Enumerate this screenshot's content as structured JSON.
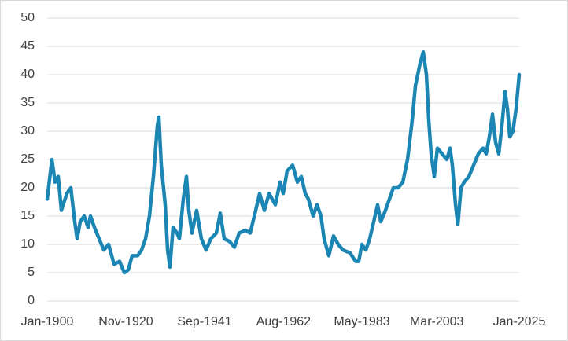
{
  "chart_data": {
    "type": "line",
    "x": [
      1900,
      1901.25,
      1902.08,
      1902.92,
      1903.75,
      1905.21,
      1906.25,
      1907.29,
      1907.92,
      1908.75,
      1909.79,
      1910.83,
      1911.46,
      1912.5,
      1913.75,
      1915,
      1916.25,
      1917.71,
      1919.17,
      1920.42,
      1921.46,
      1922.5,
      1923.96,
      1925,
      1926.04,
      1927.08,
      1928.13,
      1929.17,
      1929.58,
      1930.21,
      1931.25,
      1931.88,
      1932.5,
      1933.33,
      1934.38,
      1935,
      1936.04,
      1936.88,
      1937.5,
      1938.33,
      1939.58,
      1940.83,
      1942.08,
      1943.33,
      1944.79,
      1945.83,
      1946.88,
      1948.33,
      1949.58,
      1950.83,
      1952.5,
      1953.75,
      1955.21,
      1956.25,
      1957.5,
      1958.75,
      1960.42,
      1961.67,
      1962.5,
      1963.54,
      1965,
      1966.25,
      1967.29,
      1968.33,
      1969.17,
      1970.42,
      1971.46,
      1972.5,
      1973.33,
      1974.58,
      1975.83,
      1977.08,
      1978.33,
      1980.21,
      1981.67,
      1982.5,
      1983.33,
      1984.38,
      1985.42,
      1986.46,
      1987.5,
      1988.33,
      1989.58,
      1990.63,
      1991.67,
      1992.92,
      1994.17,
      1995.42,
      1996.67,
      1997.5,
      1998.75,
      1999.58,
      2000.42,
      2001.04,
      2001.67,
      2002.5,
      2003.33,
      2004.58,
      2005.83,
      2006.67,
      2007.29,
      2008.13,
      2008.75,
      2009.58,
      2010.42,
      2011.67,
      2012.92,
      2014.17,
      2015.42,
      2016.25,
      2017.08,
      2017.92,
      2018.75,
      2019.58,
      2020.42,
      2021.25,
      2021.88,
      2022.5,
      2023.33,
      2024.17,
      2025
    ],
    "series": [
      {
        "color": "#1b86b3",
        "values": [
          18,
          25,
          21,
          22,
          16,
          19,
          20,
          14,
          11,
          14,
          15,
          13,
          15,
          13,
          11,
          9,
          10,
          6.5,
          7,
          5,
          5.5,
          8,
          8,
          9,
          11,
          15,
          22,
          31,
          32.5,
          24,
          17,
          9,
          6,
          13,
          12,
          11,
          18,
          22,
          16,
          12,
          16,
          11,
          9,
          11,
          12,
          15.5,
          11,
          10.5,
          9.5,
          12,
          12.5,
          12,
          16,
          19,
          16,
          19,
          17,
          21,
          19,
          23,
          24,
          21,
          22,
          19,
          18,
          15,
          17,
          15,
          11,
          8,
          11.5,
          10,
          9,
          8.5,
          7,
          7,
          10,
          9,
          11,
          14,
          17,
          14,
          16,
          18,
          20,
          20,
          21,
          25,
          32,
          38,
          42,
          44,
          40,
          32,
          26,
          22,
          27,
          26,
          25,
          27,
          24,
          17,
          13.5,
          20,
          21,
          22,
          24,
          26,
          27,
          26,
          29,
          33,
          28,
          26,
          31,
          37,
          34,
          29,
          30,
          34,
          40
        ]
      }
    ],
    "xlim": [
      1900,
      2025
    ],
    "xticks": [
      {
        "value": 1900,
        "label": "Jan-1900"
      },
      {
        "value": 1920.83,
        "label": "Nov-1920"
      },
      {
        "value": 1941.67,
        "label": "Sep-1941"
      },
      {
        "value": 1962.58,
        "label": "Aug-1962"
      },
      {
        "value": 1983.33,
        "label": "May-1983"
      },
      {
        "value": 2003.17,
        "label": "Mar-2003"
      },
      {
        "value": 2025,
        "label": "Jan-2025"
      }
    ],
    "ylim": [
      0,
      50
    ],
    "yticks": [
      0,
      5,
      10,
      15,
      20,
      25,
      30,
      35,
      40,
      45,
      50
    ],
    "grid": true
  }
}
